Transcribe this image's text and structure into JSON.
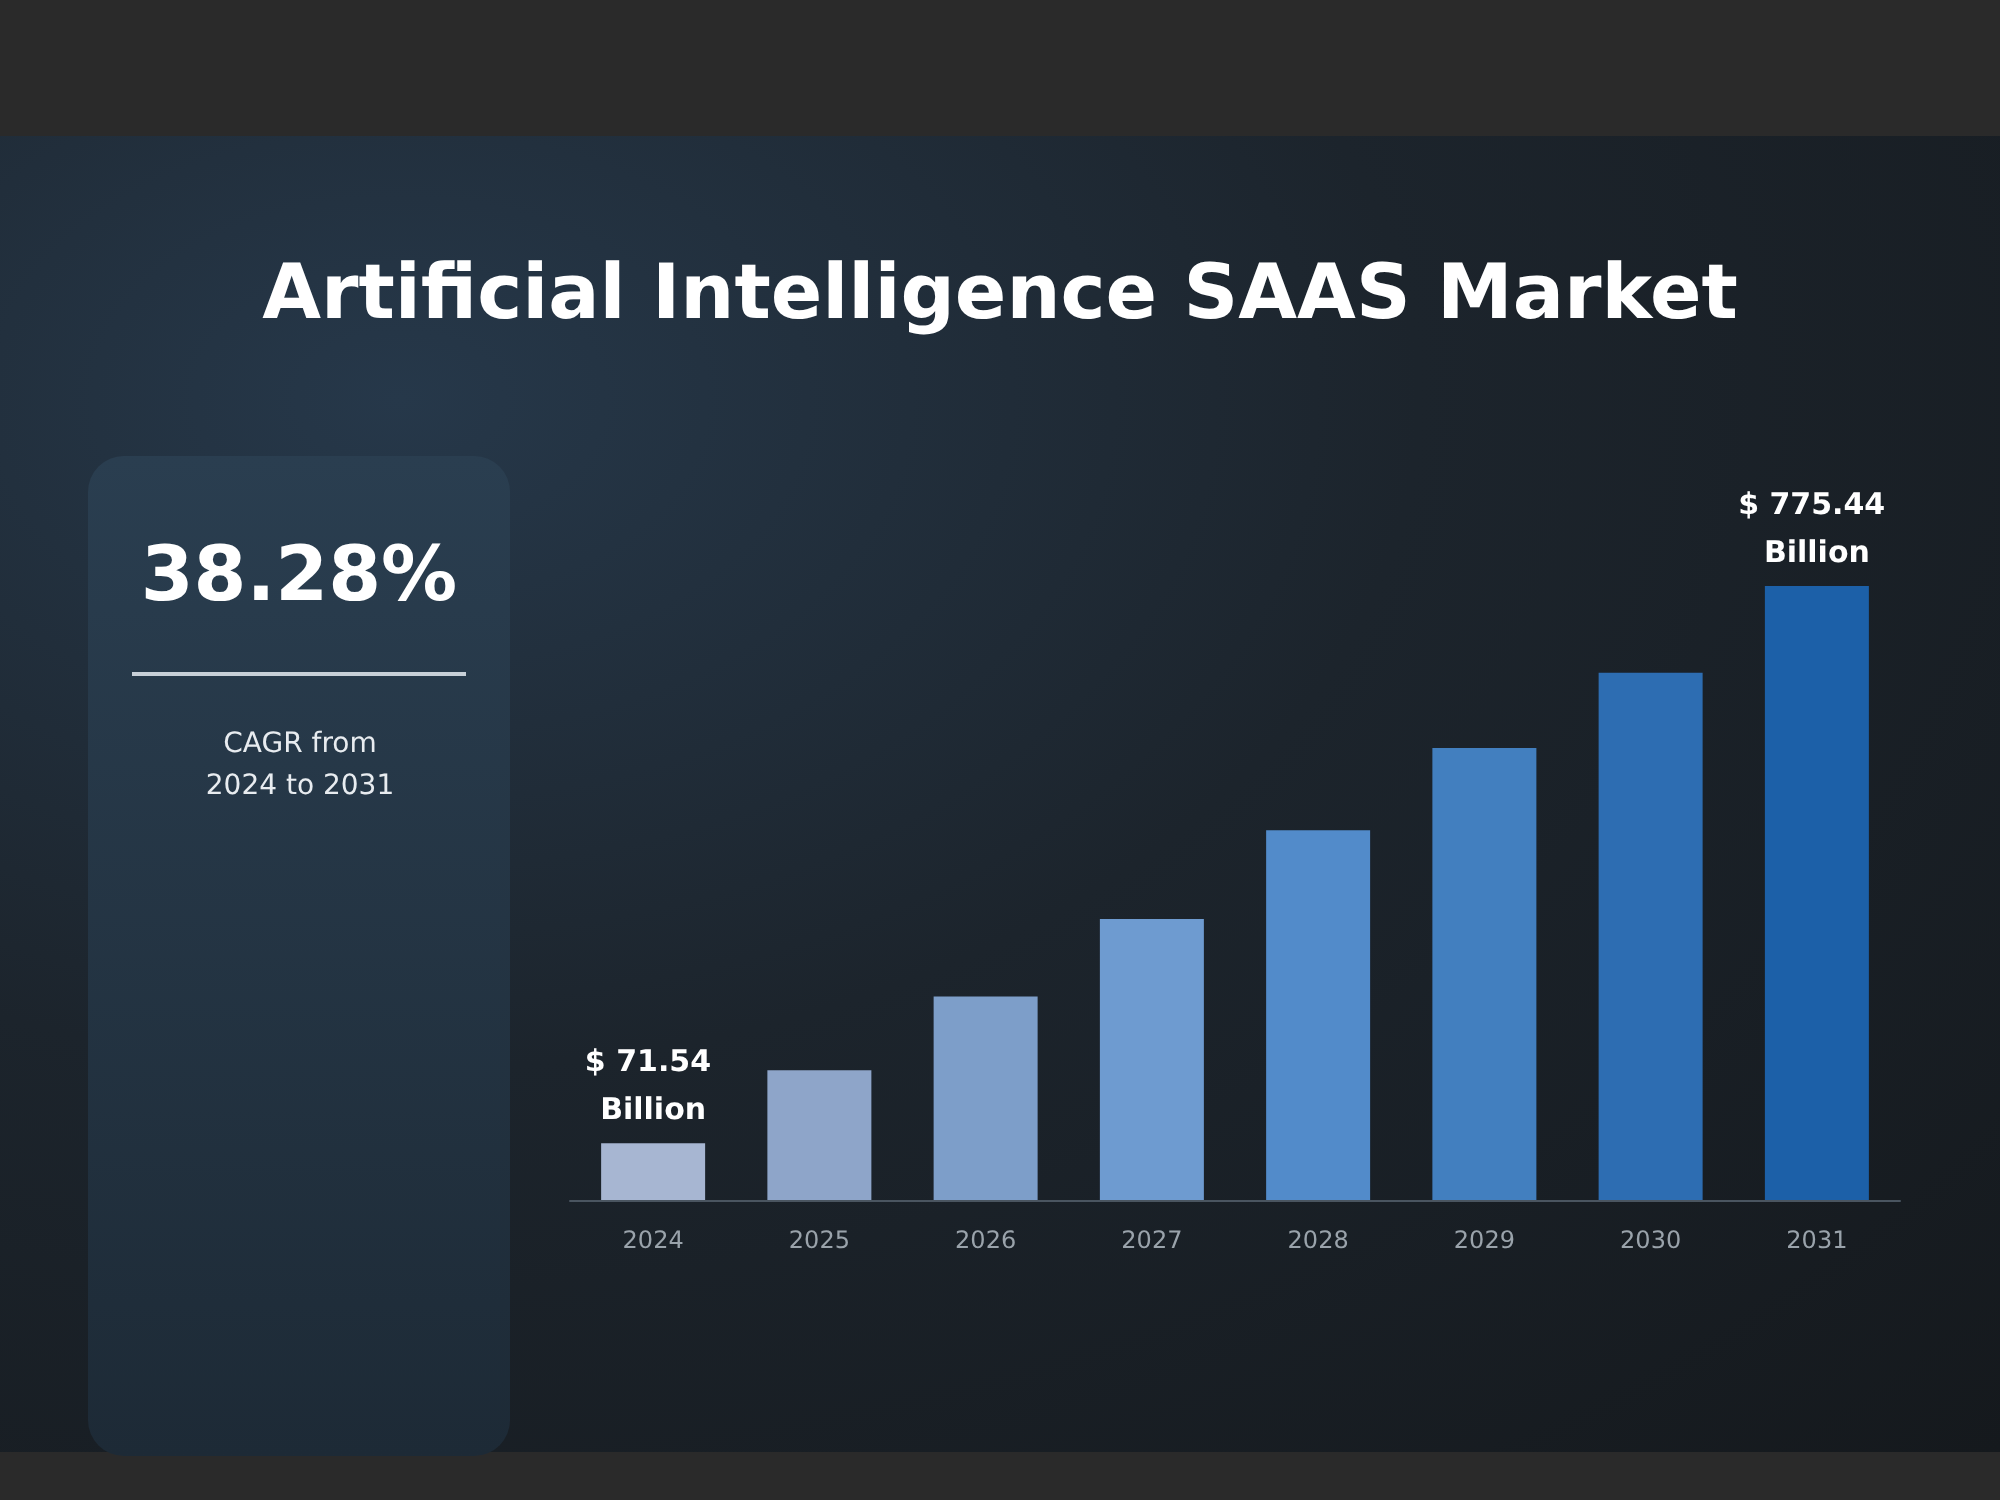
{
  "chart_data": {
    "type": "bar",
    "title": "Artificial Intelligence SAAS Market",
    "categories": [
      "2024",
      "2025",
      "2026",
      "2027",
      "2028",
      "2029",
      "2030",
      "2031"
    ],
    "values": [
      71.54,
      164,
      257,
      355,
      467,
      571,
      666,
      775.44
    ],
    "colors": [
      "#a7b6d2",
      "#8ea5c9",
      "#7d9ec9",
      "#6e9bd0",
      "#528bca",
      "#427fbf",
      "#2d6db2",
      "#1c60a8"
    ],
    "value_labels": [
      "$ 71.54 Billion",
      null,
      null,
      null,
      null,
      null,
      null,
      "$ 775.44 Billion"
    ],
    "annotations": [
      "38.28%",
      "CAGR from 2024 to 2031"
    ],
    "grid": false
  }
}
